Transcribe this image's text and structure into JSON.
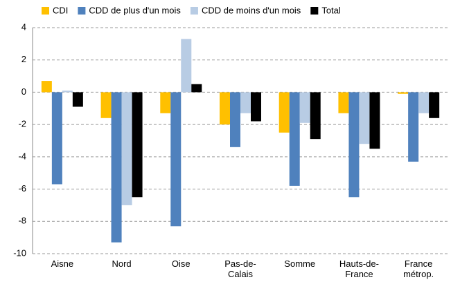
{
  "chart_data": {
    "type": "bar",
    "categories": [
      "Aisne",
      "Nord",
      "Oise",
      "Pas-de-\nCalais",
      "Somme",
      "Hauts-de-\nFrance",
      "France\nmétrop."
    ],
    "series": [
      {
        "name": "CDI",
        "color": "#ffc000",
        "values": [
          0.7,
          -1.6,
          -1.3,
          -2.0,
          -2.5,
          -1.3,
          -0.1
        ]
      },
      {
        "name": "CDD de plus d'un mois",
        "color": "#4f81bd",
        "values": [
          -5.7,
          -9.3,
          -8.3,
          -3.4,
          -5.8,
          -6.5,
          -4.3
        ]
      },
      {
        "name": "CDD de moins d'un mois",
        "color": "#b8cce4",
        "values": [
          0.1,
          -7.0,
          3.3,
          -1.3,
          -1.9,
          -3.2,
          -1.3
        ]
      },
      {
        "name": "Total",
        "color": "#000000",
        "values": [
          -0.9,
          -6.5,
          0.5,
          -1.8,
          -2.9,
          -3.5,
          -1.6
        ]
      }
    ],
    "ylim": [
      -10,
      4
    ],
    "yticks": [
      4,
      2,
      0,
      -2,
      -4,
      -6,
      -8,
      -10
    ],
    "grid": true,
    "legend": "top"
  }
}
